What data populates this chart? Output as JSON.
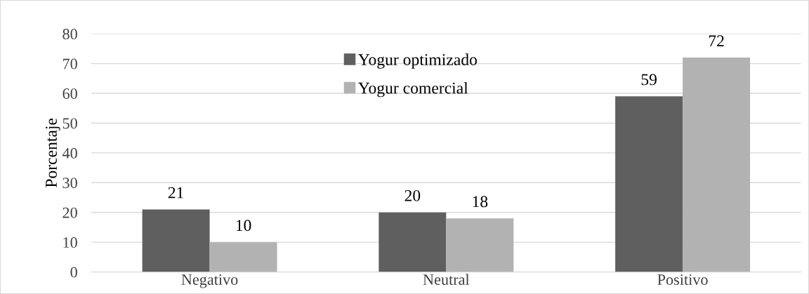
{
  "chart_data": {
    "type": "bar",
    "ylabel": "Porcentaje",
    "categories": [
      "Negativo",
      "Neutral",
      "Positivo"
    ],
    "series": [
      {
        "name": "Yogur optimizado",
        "color": "#5f5f5f",
        "values": [
          21,
          20,
          59
        ]
      },
      {
        "name": "Yogur comercial",
        "color": "#b2b2b2",
        "values": [
          10,
          18,
          72
        ]
      }
    ],
    "ylim": [
      0,
      80
    ],
    "yticks": [
      0,
      10,
      20,
      30,
      40,
      50,
      60,
      70,
      80
    ],
    "grid": "y",
    "legend": "top",
    "data_labels": true
  }
}
